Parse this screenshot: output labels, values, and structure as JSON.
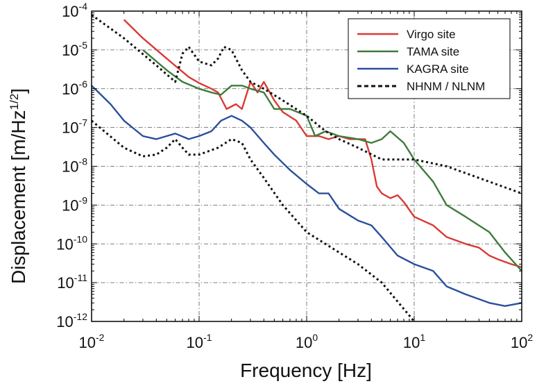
{
  "chart_data": {
    "type": "line",
    "title": "",
    "xlabel": "Frequency [Hz]",
    "ylabel_main": "Displacement [m/Hz",
    "ylabel_sup": "1/2",
    "ylabel_close": "]",
    "x_scale": "log",
    "y_scale": "log",
    "xlim": [
      0.01,
      100
    ],
    "ylim": [
      1e-12,
      0.0001
    ],
    "grid": true,
    "legend_position": "top-right",
    "x_ticks": [
      {
        "value": 0.01,
        "base": "10",
        "exp": "-2"
      },
      {
        "value": 0.1,
        "base": "10",
        "exp": "-1"
      },
      {
        "value": 1,
        "base": "10",
        "exp": "0"
      },
      {
        "value": 10,
        "base": "10",
        "exp": "1"
      },
      {
        "value": 100,
        "base": "10",
        "exp": "2"
      }
    ],
    "y_ticks": [
      {
        "value": 1e-12,
        "base": "10",
        "exp": "-12"
      },
      {
        "value": 1e-11,
        "base": "10",
        "exp": "-11"
      },
      {
        "value": 1e-10,
        "base": "10",
        "exp": "-10"
      },
      {
        "value": 1e-09,
        "base": "10",
        "exp": "-9"
      },
      {
        "value": 1e-08,
        "base": "10",
        "exp": "-8"
      },
      {
        "value": 1e-07,
        "base": "10",
        "exp": "-7"
      },
      {
        "value": 1e-06,
        "base": "10",
        "exp": "-6"
      },
      {
        "value": 1e-05,
        "base": "10",
        "exp": "-5"
      },
      {
        "value": 0.0001,
        "base": "10",
        "exp": "-4"
      }
    ],
    "series": [
      {
        "name": "Virgo site",
        "color": "#d93a35",
        "style": "solid",
        "x": [
          0.02,
          0.03,
          0.05,
          0.08,
          0.1,
          0.13,
          0.15,
          0.18,
          0.22,
          0.25,
          0.3,
          0.35,
          0.4,
          0.5,
          0.6,
          0.8,
          1.0,
          1.3,
          1.6,
          2.0,
          2.5,
          3.0,
          3.5,
          4.0,
          4.5,
          5.0,
          6.0,
          7.0,
          8.0,
          10,
          15,
          20,
          30,
          40,
          50,
          60,
          80,
          100
        ],
        "y": [
          6e-05,
          2e-05,
          6e-06,
          2e-06,
          1.4e-06,
          1e-06,
          8e-07,
          3e-07,
          4e-07,
          3e-07,
          1.5e-06,
          8e-07,
          1.5e-06,
          5e-07,
          2.5e-07,
          1.5e-07,
          6e-08,
          6e-08,
          5e-08,
          6e-08,
          5e-08,
          5e-08,
          5e-08,
          1.5e-08,
          3e-09,
          2e-09,
          1.5e-09,
          1.8e-09,
          1.2e-09,
          5e-10,
          3e-10,
          1.5e-10,
          1e-10,
          8e-11,
          5e-11,
          4e-11,
          3e-11,
          2.5e-11
        ]
      },
      {
        "name": "TAMA site",
        "color": "#3e7b3c",
        "style": "solid",
        "x": [
          0.03,
          0.05,
          0.07,
          0.1,
          0.13,
          0.16,
          0.2,
          0.25,
          0.3,
          0.4,
          0.5,
          0.7,
          1.0,
          1.2,
          1.5,
          2.0,
          3.0,
          4.0,
          5.0,
          6.0,
          8.0,
          10,
          15,
          20,
          30,
          50,
          70,
          100
        ],
        "y": [
          1e-05,
          3e-06,
          1.5e-06,
          1e-06,
          8e-07,
          7e-07,
          1.2e-06,
          1.2e-06,
          1e-06,
          8e-07,
          3e-07,
          3e-07,
          2e-07,
          6e-08,
          8e-08,
          6e-08,
          5e-08,
          4e-08,
          5e-08,
          8e-08,
          4e-08,
          1.5e-08,
          4e-09,
          1e-09,
          5e-10,
          2e-10,
          6e-11,
          2e-11
        ]
      },
      {
        "name": "KAGRA site",
        "color": "#2b4f9b",
        "style": "solid",
        "x": [
          0.01,
          0.015,
          0.02,
          0.03,
          0.04,
          0.05,
          0.06,
          0.08,
          0.1,
          0.13,
          0.16,
          0.2,
          0.25,
          0.3,
          0.4,
          0.5,
          0.7,
          1.0,
          1.3,
          1.6,
          2.0,
          3.0,
          4.0,
          5.0,
          7.0,
          10,
          15,
          20,
          30,
          50,
          70,
          100
        ],
        "y": [
          1.2e-06,
          4e-07,
          1.5e-07,
          6e-08,
          5e-08,
          6e-08,
          7e-08,
          5e-08,
          6e-08,
          8e-08,
          1.5e-07,
          2e-07,
          1.5e-07,
          1e-07,
          4e-08,
          2e-08,
          8e-09,
          3.5e-09,
          2e-09,
          2e-09,
          8e-10,
          4e-10,
          3e-10,
          1.5e-10,
          5e-11,
          3e-11,
          2e-11,
          8e-12,
          5e-12,
          3e-12,
          2.5e-12,
          3e-12
        ]
      },
      {
        "name": "NHNM / NLNM",
        "color": "#111111",
        "style": "dashed",
        "x": [
          0.01,
          0.02,
          0.04,
          0.06,
          0.07,
          0.08,
          0.1,
          0.13,
          0.15,
          0.17,
          0.2,
          0.25,
          0.3,
          0.4,
          0.6,
          1.0,
          1.5,
          2.0,
          3.0,
          5.0,
          10,
          20,
          40,
          100
        ],
        "y": [
          8e-05,
          2e-05,
          4e-06,
          1.5e-06,
          8e-06,
          1.2e-05,
          5e-06,
          4e-06,
          6e-06,
          1.2e-05,
          1e-05,
          3e-06,
          1.5e-06,
          1e-06,
          5e-07,
          2e-07,
          8e-08,
          5e-08,
          3e-08,
          1.5e-08,
          1.5e-08,
          1e-08,
          5e-09,
          2e-09
        ]
      },
      {
        "name": "",
        "legend_hidden": true,
        "color": "#111111",
        "style": "dashed",
        "x": [
          0.01,
          0.02,
          0.03,
          0.04,
          0.05,
          0.06,
          0.07,
          0.08,
          0.1,
          0.15,
          0.2,
          0.25,
          0.3,
          0.4,
          0.6,
          1.0,
          2.0,
          3.0,
          5.0,
          10
        ],
        "y": [
          1.5e-07,
          3e-08,
          1.8e-08,
          2e-08,
          3e-08,
          5e-08,
          3e-08,
          2e-08,
          2e-08,
          3e-08,
          5e-08,
          4e-08,
          1.5e-08,
          5e-09,
          1e-09,
          2e-10,
          6e-11,
          3e-11,
          1e-11,
          1e-12
        ]
      }
    ]
  }
}
